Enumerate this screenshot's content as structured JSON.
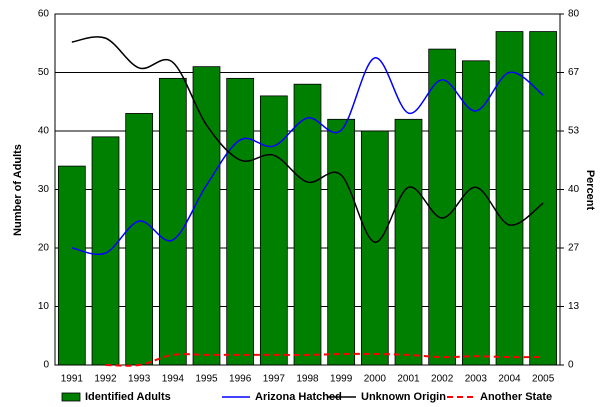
{
  "chart_data": {
    "type": "bar-line",
    "categories": [
      "1991",
      "1992",
      "1993",
      "1994",
      "1995",
      "1996",
      "1997",
      "1998",
      "1999",
      "2000",
      "2001",
      "2002",
      "2003",
      "2004",
      "2005"
    ],
    "ylabel": "Number of Adults",
    "y2label": "Percent",
    "ylim": [
      0,
      60
    ],
    "yticks": [
      0,
      10,
      20,
      30,
      40,
      50,
      60
    ],
    "y2lim": [
      0,
      80
    ],
    "y2ticks": [
      0,
      {
        "value": 13.33,
        "label": "13"
      },
      {
        "value": 26.67,
        "label": "27"
      },
      40,
      {
        "value": 53.33,
        "label": "53"
      },
      {
        "value": 66.67,
        "label": "67"
      },
      80
    ],
    "grid": true,
    "legend": "bottom",
    "series": [
      {
        "name": "Identified Adults",
        "type": "bar",
        "color": "#008000",
        "values": [
          34,
          39,
          43,
          49,
          51,
          49,
          46,
          48,
          42,
          40,
          42,
          54,
          52,
          57,
          57
        ]
      },
      {
        "name": "Arizona Hatched",
        "type": "line",
        "axis": "y2",
        "color": "#0000ff",
        "dash": false,
        "values": [
          26.7,
          25.5,
          32.8,
          28.5,
          41,
          51.3,
          49.9,
          56.3,
          53.5,
          70,
          57.4,
          65,
          57.9,
          66.7,
          61.5
        ]
      },
      {
        "name": "Unknown Origin",
        "type": "line",
        "axis": "y2",
        "color": "#000000",
        "dash": false,
        "values": [
          73.6,
          74.5,
          67.7,
          69,
          54.7,
          46.7,
          47.8,
          41.7,
          43.3,
          28,
          40.5,
          33.5,
          40.5,
          31.9,
          36.9
        ]
      },
      {
        "name": "Another State",
        "type": "line",
        "axis": "y2",
        "color": "#ff0000",
        "dash": true,
        "values": [
          null,
          0,
          0,
          2.3,
          2.3,
          2.3,
          2.3,
          2.3,
          2.5,
          2.5,
          2.3,
          1.8,
          2,
          1.8,
          1.8
        ]
      }
    ]
  }
}
